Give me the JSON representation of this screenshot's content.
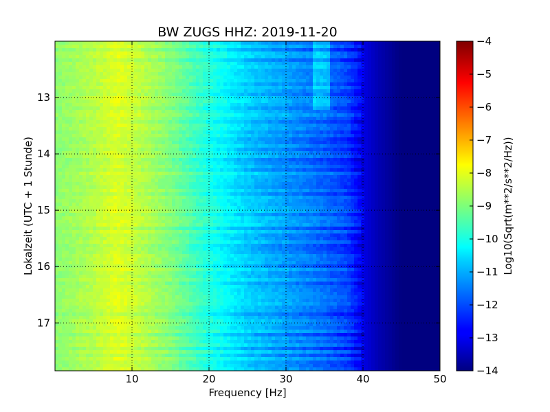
{
  "chart_data": {
    "type": "heatmap",
    "title": "BW ZUGS HHZ: 2019-11-20",
    "xlabel": "Frequency [Hz]",
    "ylabel": "Lokalzeit (UTC + 1 Stunde)",
    "xlim": [
      0,
      50
    ],
    "ylim": [
      17.85,
      12.0
    ],
    "x_ticks": [
      10,
      20,
      30,
      40,
      50
    ],
    "x_tick_labels": [
      "10",
      "20",
      "30",
      "40",
      "50"
    ],
    "y_ticks": [
      13,
      14,
      15,
      16,
      17
    ],
    "y_tick_labels": [
      "13",
      "14",
      "15",
      "16",
      "17"
    ],
    "y_axis_inverted": true,
    "grid": "dotted",
    "colormap": "jet",
    "colorbar": {
      "label": "Log10(Sqrt(m**2/s**2/Hz))",
      "range": [
        -14,
        -4
      ],
      "ticks": [
        -14,
        -13,
        -12,
        -11,
        -10,
        -9,
        -8,
        -7,
        -6,
        -5,
        -4
      ],
      "tick_labels": [
        "−14",
        "−13",
        "−12",
        "−11",
        "−10",
        "−9",
        "−8",
        "−7",
        "−6",
        "−5",
        "−4"
      ]
    },
    "spectral_profile": {
      "frequency_hz": [
        0,
        5,
        8,
        10,
        15,
        20,
        25,
        30,
        35,
        38,
        40,
        42,
        45,
        50
      ],
      "level_log10": [
        -8.9,
        -8.5,
        -8.1,
        -8.3,
        -9.0,
        -10.0,
        -10.8,
        -11.3,
        -11.8,
        -12.2,
        -13.0,
        -13.5,
        -14.0,
        -14.0
      ]
    }
  }
}
